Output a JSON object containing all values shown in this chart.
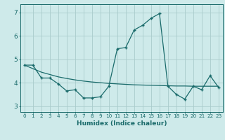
{
  "xlabel": "Humidex (Indice chaleur)",
  "bg_color": "#ceeaea",
  "line_color": "#1a6b6b",
  "grid_color": "#aacccc",
  "xlim": [
    -0.5,
    23.5
  ],
  "ylim": [
    2.75,
    7.35
  ],
  "yticks": [
    3,
    4,
    5,
    6,
    7
  ],
  "xticks": [
    0,
    1,
    2,
    3,
    4,
    5,
    6,
    7,
    8,
    9,
    10,
    11,
    12,
    13,
    14,
    15,
    16,
    17,
    18,
    19,
    20,
    21,
    22,
    23
  ],
  "series1_x": [
    0,
    1,
    2,
    3,
    4,
    5,
    6,
    7,
    8,
    9,
    10,
    11,
    12,
    13,
    14,
    15,
    16,
    17,
    18,
    19,
    20,
    21,
    22,
    23
  ],
  "series1_y": [
    4.75,
    4.75,
    4.2,
    4.2,
    3.95,
    3.65,
    3.7,
    3.35,
    3.35,
    3.4,
    3.85,
    5.45,
    5.5,
    6.25,
    6.45,
    6.75,
    6.95,
    3.85,
    3.5,
    3.3,
    3.85,
    3.7,
    4.3,
    3.8
  ],
  "series2_x": [
    0,
    1,
    2,
    3,
    4,
    5,
    6,
    7,
    8,
    9,
    10,
    11,
    12,
    13,
    14,
    15,
    16,
    17,
    18,
    19,
    20,
    21,
    22,
    23
  ],
  "series2_y": [
    4.75,
    4.6,
    4.45,
    4.35,
    4.25,
    4.18,
    4.12,
    4.07,
    4.03,
    4.0,
    3.97,
    3.95,
    3.93,
    3.91,
    3.9,
    3.89,
    3.88,
    3.87,
    3.86,
    3.86,
    3.85,
    3.85,
    3.85,
    3.85
  ]
}
